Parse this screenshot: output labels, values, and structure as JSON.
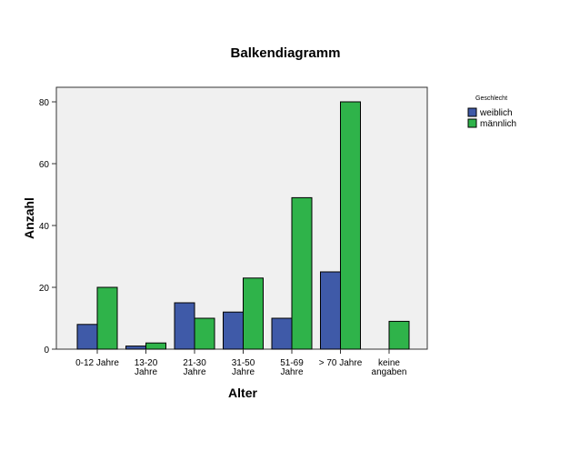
{
  "chart_data": {
    "type": "bar",
    "title": "Balkendiagramm",
    "xlabel": "Alter",
    "ylabel": "Anzahl",
    "ylim": [
      0,
      85
    ],
    "yticks": [
      0,
      20,
      40,
      60,
      80
    ],
    "grid": false,
    "legend_position": "top-right",
    "legend_title": "Geschlecht",
    "categories": [
      [
        "0-12 Jahre"
      ],
      [
        "13-20",
        "Jahre"
      ],
      [
        "21-30",
        "Jahre"
      ],
      [
        "31-50",
        "Jahre"
      ],
      [
        "51-69",
        "Jahre"
      ],
      [
        "> 70 Jahre"
      ],
      [
        "keine",
        "angaben"
      ]
    ],
    "series": [
      {
        "name": "weiblich",
        "color": "#3f5aa8",
        "values": [
          8,
          1,
          15,
          12,
          10,
          25,
          0
        ]
      },
      {
        "name": "männlich",
        "color": "#2fb34a",
        "values": [
          20,
          2,
          10,
          23,
          49,
          80,
          9
        ]
      }
    ],
    "plot_background": "#f0f0f0"
  }
}
